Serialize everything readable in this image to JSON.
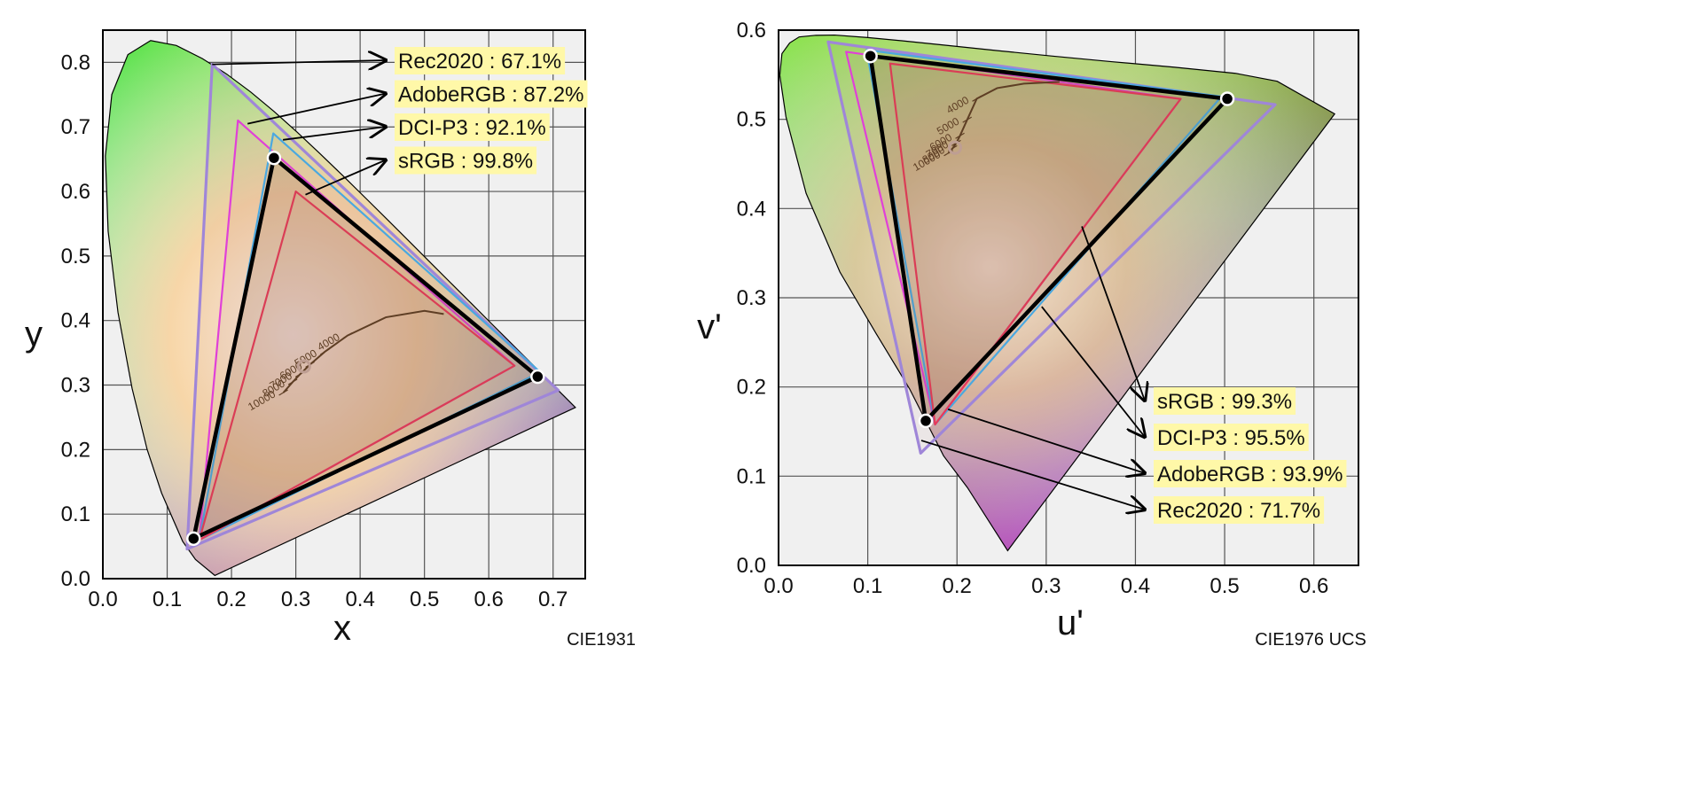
{
  "chart_data": [
    {
      "type": "scatter",
      "name": "CIE1931",
      "caption": "CIE1931",
      "xlabel": "x",
      "ylabel": "y",
      "xlim": [
        0.0,
        0.75
      ],
      "ylim": [
        0.0,
        0.85
      ],
      "xticks": [
        "0.0",
        "0.1",
        "0.2",
        "0.3",
        "0.4",
        "0.5",
        "0.6",
        "0.7"
      ],
      "yticks": [
        "0.0",
        "0.1",
        "0.2",
        "0.3",
        "0.4",
        "0.5",
        "0.6",
        "0.7",
        "0.8"
      ],
      "grid": true,
      "locus": [
        [
          0.1741,
          0.005
        ],
        [
          0.144,
          0.0297
        ],
        [
          0.1241,
          0.0578
        ],
        [
          0.0913,
          0.1327
        ],
        [
          0.0687,
          0.2007
        ],
        [
          0.0454,
          0.295
        ],
        [
          0.0235,
          0.4127
        ],
        [
          0.0082,
          0.5384
        ],
        [
          0.0039,
          0.6548
        ],
        [
          0.0139,
          0.7502
        ],
        [
          0.0389,
          0.812
        ],
        [
          0.0743,
          0.8338
        ],
        [
          0.1142,
          0.8262
        ],
        [
          0.1547,
          0.8059
        ],
        [
          0.1929,
          0.7816
        ],
        [
          0.2296,
          0.7543
        ],
        [
          0.2658,
          0.7243
        ],
        [
          0.3016,
          0.6923
        ],
        [
          0.3373,
          0.6589
        ],
        [
          0.3731,
          0.6245
        ],
        [
          0.4087,
          0.5896
        ],
        [
          0.4441,
          0.5547
        ],
        [
          0.4788,
          0.5202
        ],
        [
          0.5125,
          0.4866
        ],
        [
          0.5448,
          0.4544
        ],
        [
          0.5752,
          0.4242
        ],
        [
          0.6029,
          0.3965
        ],
        [
          0.627,
          0.3725
        ],
        [
          0.6482,
          0.3514
        ],
        [
          0.6658,
          0.334
        ],
        [
          0.6801,
          0.3197
        ],
        [
          0.6915,
          0.3083
        ],
        [
          0.7006,
          0.2993
        ],
        [
          0.714,
          0.2859
        ],
        [
          0.7347,
          0.2653
        ]
      ],
      "gamuts": [
        {
          "name": "Rec2020",
          "coverage": "67.1%",
          "color": "#9f86d8",
          "points": [
            [
              0.708,
              0.292
            ],
            [
              0.17,
              0.797
            ],
            [
              0.131,
              0.046
            ]
          ]
        },
        {
          "name": "AdobeRGB",
          "coverage": "87.2%",
          "color": "#e040d8",
          "points": [
            [
              0.64,
              0.33
            ],
            [
              0.21,
              0.71
            ],
            [
              0.15,
              0.06
            ]
          ]
        },
        {
          "name": "DCI-P3",
          "coverage": "92.1%",
          "color": "#4aa8e0",
          "points": [
            [
              0.68,
              0.32
            ],
            [
              0.265,
              0.69
            ],
            [
              0.15,
              0.06
            ]
          ]
        },
        {
          "name": "sRGB",
          "coverage": "99.8%",
          "color": "#e83a5a",
          "points": [
            [
              0.64,
              0.33
            ],
            [
              0.3,
              0.6
            ],
            [
              0.15,
              0.06
            ]
          ]
        }
      ],
      "measured": {
        "name": "",
        "color": "#000000",
        "points": [
          [
            0.676,
            0.313
          ],
          [
            0.266,
            0.652
          ],
          [
            0.141,
            0.062
          ]
        ]
      },
      "white_point": [
        0.3127,
        0.329
      ],
      "cct_labels": [
        "4000",
        "5000",
        "6000",
        "7000",
        "8000",
        "10000"
      ],
      "planckian": [
        [
          0.3805,
          0.3768
        ],
        [
          0.3451,
          0.3516
        ],
        [
          0.3221,
          0.3318
        ],
        [
          0.3064,
          0.3166
        ],
        [
          0.2952,
          0.3048
        ],
        [
          0.2807,
          0.2884
        ]
      ],
      "planckian_extension": [
        [
          0.3805,
          0.3768
        ],
        [
          0.44,
          0.405
        ],
        [
          0.5,
          0.415
        ],
        [
          0.53,
          0.41
        ]
      ],
      "callouts": [
        {
          "gamut": "Rec2020",
          "label": "Rec2020 : 67.1%",
          "from": [
            0.17,
            0.797
          ]
        },
        {
          "gamut": "AdobeRGB",
          "label": "AdobeRGB : 87.2%",
          "from": [
            0.225,
            0.705
          ]
        },
        {
          "gamut": "DCI-P3",
          "label": "DCI-P3 : 92.1%",
          "from": [
            0.28,
            0.68
          ]
        },
        {
          "gamut": "sRGB",
          "label": "sRGB : 99.8%",
          "from": [
            0.315,
            0.595
          ]
        }
      ]
    },
    {
      "type": "scatter",
      "name": "CIE1976 UCS",
      "caption": "CIE1976 UCS",
      "xlabel": "u'",
      "ylabel": "v'",
      "xlim": [
        0.0,
        0.65
      ],
      "ylim": [
        0.0,
        0.6
      ],
      "xticks": [
        "0.0",
        "0.1",
        "0.2",
        "0.3",
        "0.4",
        "0.5",
        "0.6"
      ],
      "yticks": [
        "0.0",
        "0.1",
        "0.2",
        "0.3",
        "0.4",
        "0.5",
        "0.6"
      ],
      "grid": true,
      "locus": [
        [
          0.2568,
          0.0165
        ],
        [
          0.2117,
          0.0872
        ],
        [
          0.185,
          0.1227
        ],
        [
          0.147,
          0.1976
        ],
        [
          0.1093,
          0.26
        ],
        [
          0.0688,
          0.3288
        ],
        [
          0.0309,
          0.4171
        ],
        [
          0.0083,
          0.5028
        ],
        [
          0.0014,
          0.5494
        ],
        [
          0.0038,
          0.5736
        ],
        [
          0.0125,
          0.5857
        ],
        [
          0.0231,
          0.5924
        ],
        [
          0.0419,
          0.5942
        ],
        [
          0.0628,
          0.5945
        ],
        [
          0.1,
          0.5917
        ],
        [
          0.1431,
          0.5876
        ],
        [
          0.1915,
          0.5826
        ],
        [
          0.2464,
          0.5769
        ],
        [
          0.3071,
          0.5709
        ],
        [
          0.3729,
          0.5647
        ],
        [
          0.4441,
          0.5584
        ],
        [
          0.512,
          0.5516
        ],
        [
          0.5589,
          0.5427
        ],
        [
          0.6233,
          0.5061
        ]
      ],
      "gamuts": [
        {
          "name": "Rec2020",
          "coverage": "71.7%",
          "color": "#9f86d8",
          "points": [
            [
              0.5566,
              0.5165
            ],
            [
              0.0556,
              0.5868
            ],
            [
              0.1593,
              0.1258
            ]
          ]
        },
        {
          "name": "AdobeRGB",
          "coverage": "93.9%",
          "color": "#e040d8",
          "points": [
            [
              0.4507,
              0.5229
            ],
            [
              0.0757,
              0.5757
            ],
            [
              0.1754,
              0.1579
            ]
          ]
        },
        {
          "name": "DCI-P3",
          "coverage": "95.5%",
          "color": "#4aa8e0",
          "points": [
            [
              0.4964,
              0.5255
            ],
            [
              0.0986,
              0.5777
            ],
            [
              0.1754,
              0.1579
            ]
          ]
        },
        {
          "name": "sRGB",
          "coverage": "99.3%",
          "color": "#e83a5a",
          "points": [
            [
              0.4507,
              0.5229
            ],
            [
              0.125,
              0.5625
            ],
            [
              0.1754,
              0.1579
            ]
          ]
        }
      ],
      "measured": {
        "name": "",
        "color": "#000000",
        "points": [
          [
            0.503,
            0.523
          ],
          [
            0.103,
            0.571
          ],
          [
            0.165,
            0.162
          ]
        ]
      },
      "white_point": [
        0.1978,
        0.4683
      ],
      "cct_labels": [
        "4000",
        "5000",
        "6000",
        "7000",
        "8000",
        "10000"
      ],
      "planckian": [
        [
          0.2222,
          0.5232
        ],
        [
          0.2114,
          0.4995
        ],
        [
          0.2033,
          0.4815
        ],
        [
          0.1992,
          0.4735
        ],
        [
          0.1951,
          0.4675
        ],
        [
          0.1904,
          0.4622
        ]
      ],
      "planckian_extension": [
        [
          0.2222,
          0.5232
        ],
        [
          0.245,
          0.535
        ],
        [
          0.275,
          0.54
        ],
        [
          0.315,
          0.542
        ]
      ],
      "callouts": [
        {
          "gamut": "sRGB",
          "label": "sRGB : 99.3%",
          "from": [
            0.34,
            0.38
          ]
        },
        {
          "gamut": "DCI-P3",
          "label": "DCI-P3 : 95.5%",
          "from": [
            0.295,
            0.29
          ]
        },
        {
          "gamut": "AdobeRGB",
          "label": "AdobeRGB : 93.9%",
          "from": [
            0.19,
            0.175
          ]
        },
        {
          "gamut": "Rec2020",
          "label": "Rec2020 : 71.7%",
          "from": [
            0.16,
            0.14
          ]
        }
      ]
    }
  ],
  "colors": {
    "plot_background": "#f0f0f0",
    "gridline": "#555555",
    "callout_box": "#fff8a8",
    "white_point_marker": "#c8a8a0",
    "cct_curve": "#5a3b22"
  }
}
